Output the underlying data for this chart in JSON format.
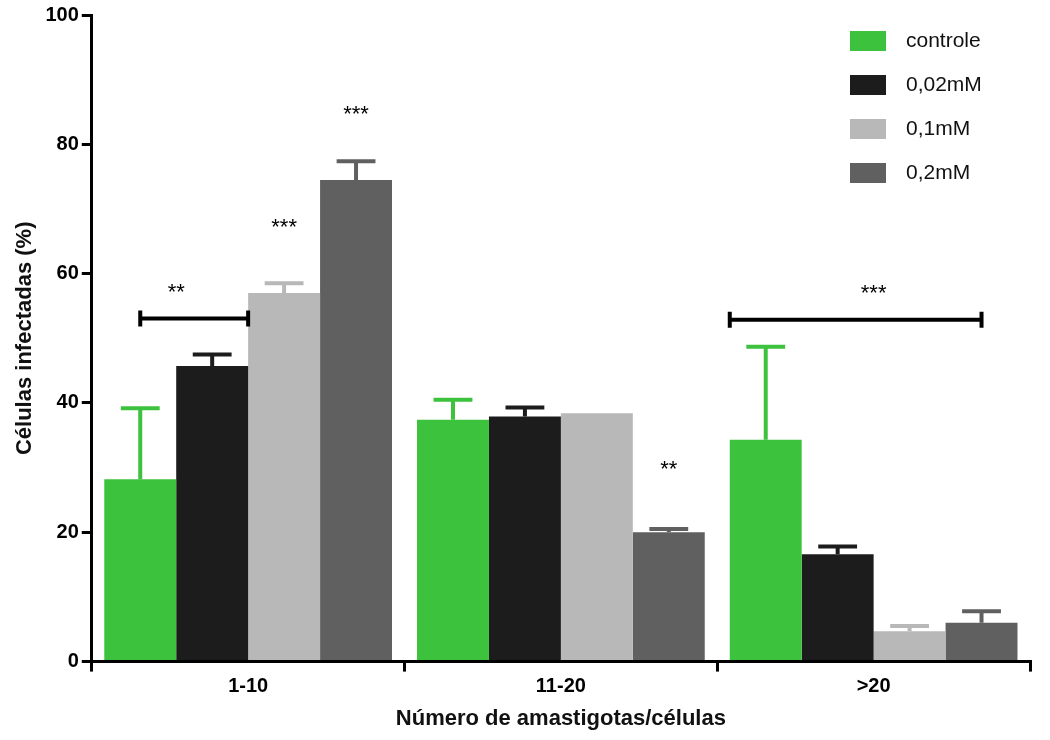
{
  "chart_data": {
    "type": "bar",
    "xlabel": "Número de amastigotas/células",
    "ylabel": "Células infectadas (%)",
    "categories": [
      "1-10",
      "11-20",
      ">20"
    ],
    "series": [
      {
        "name": "controle",
        "color": "#3cc23c",
        "values": [
          28.2,
          37.4,
          34.3
        ],
        "errors": [
          [
            28.2,
            39.2
          ],
          [
            37.4,
            40.5
          ],
          [
            34.3,
            48.7
          ]
        ]
      },
      {
        "name": "0,02mM",
        "color": "#1c1c1c",
        "values": [
          45.7,
          37.9,
          16.6
        ],
        "errors": [
          [
            45.7,
            47.5
          ],
          [
            37.9,
            39.3
          ],
          [
            16.6,
            17.8
          ]
        ]
      },
      {
        "name": "0,1mM",
        "color": "#b8b8b8",
        "values": [
          57.0,
          38.4,
          4.7
        ],
        "errors": [
          [
            57.0,
            58.5
          ],
          null,
          [
            4.7,
            5.5
          ]
        ]
      },
      {
        "name": "0,2mM",
        "color": "#606060",
        "values": [
          74.5,
          20.0,
          6.0
        ],
        "errors": [
          [
            74.5,
            77.4
          ],
          [
            20.0,
            20.5
          ],
          [
            6.0,
            7.8
          ]
        ]
      }
    ],
    "annotations": [
      "**",
      "***",
      "***",
      "**",
      "***"
    ],
    "ylim": [
      0,
      100
    ],
    "yticks": [
      0,
      20,
      40,
      60,
      80,
      100
    ],
    "grid": false,
    "legend": "top right"
  }
}
